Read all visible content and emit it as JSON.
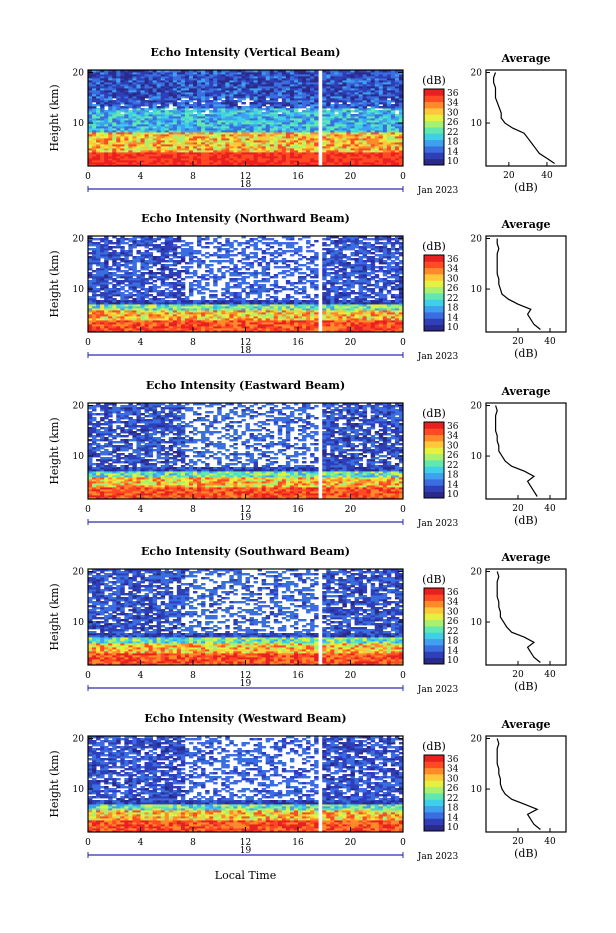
{
  "colors": {
    "scale": [
      "#2a2a8a",
      "#2e3fb8",
      "#3a6ee0",
      "#3fa0f0",
      "#3fd0e8",
      "#60e8b0",
      "#a8f070",
      "#e6f040",
      "#ffc83a",
      "#ff8a2a",
      "#ff4a24",
      "#e82020"
    ],
    "accent": "#2a2ab0",
    "gap": "#ffffff"
  },
  "xlabel": "Local Time",
  "units": "(dB)",
  "average_title": "Average",
  "colorbar_ticks": [
    "36",
    "34",
    "30",
    "26",
    "22",
    "18",
    "14",
    "10"
  ],
  "date_label": "Jan 2023",
  "chart_data": [
    {
      "type": "heatmap",
      "title": "Echo Intensity (Vertical Beam)",
      "ylabel": "Height (km)",
      "x_ticks": [
        "0",
        "4",
        "8",
        "12",
        "16",
        "20",
        "0"
      ],
      "y_ticks": [
        "20",
        "10"
      ],
      "day_label": "18",
      "xlim": [
        0,
        24
      ],
      "ylim": [
        1.5,
        20.5
      ],
      "clim": [
        10,
        38
      ],
      "average_profile": {
        "xlabel": "(dB)",
        "x_ticks": [
          "20",
          "40"
        ],
        "y_ticks": [
          "20",
          "10"
        ],
        "xlim": [
          8,
          50
        ],
        "height": [
          2,
          3,
          4,
          5,
          6,
          7,
          8,
          9,
          10,
          11,
          12,
          13,
          14,
          15,
          16,
          17,
          18,
          19,
          20
        ],
        "value": [
          44,
          40,
          36,
          34,
          32,
          30,
          28,
          22,
          18,
          16,
          16,
          15,
          14,
          13,
          13,
          13,
          12,
          12,
          13
        ]
      }
    },
    {
      "type": "heatmap",
      "title": "Echo Intensity (Northward Beam)",
      "ylabel": "Height (km)",
      "x_ticks": [
        "0",
        "4",
        "8",
        "12",
        "16",
        "20",
        "0"
      ],
      "y_ticks": [
        "20",
        "10"
      ],
      "day_label": "18",
      "xlim": [
        0,
        24
      ],
      "ylim": [
        1.5,
        20.5
      ],
      "clim": [
        10,
        38
      ],
      "average_profile": {
        "xlabel": "(dB)",
        "x_ticks": [
          "20",
          "40"
        ],
        "y_ticks": [
          "20",
          "10"
        ],
        "xlim": [
          0,
          50
        ],
        "height": [
          2,
          3,
          4,
          5,
          6,
          7,
          8,
          9,
          10,
          11,
          12,
          13,
          14,
          15,
          16,
          17,
          18,
          19,
          20
        ],
        "value": [
          34,
          30,
          28,
          26,
          28,
          20,
          14,
          10,
          9,
          8,
          8,
          7,
          7,
          7,
          7,
          7,
          8,
          7,
          7
        ]
      }
    },
    {
      "type": "heatmap",
      "title": "Echo Intensity (Eastward Beam)",
      "ylabel": "Height (km)",
      "x_ticks": [
        "0",
        "4",
        "8",
        "12",
        "16",
        "20",
        "0"
      ],
      "y_ticks": [
        "20",
        "10"
      ],
      "day_label": "19",
      "xlim": [
        0,
        24
      ],
      "ylim": [
        1.5,
        20.5
      ],
      "clim": [
        10,
        38
      ],
      "average_profile": {
        "xlabel": "(dB)",
        "x_ticks": [
          "20",
          "40"
        ],
        "y_ticks": [
          "20",
          "10"
        ],
        "xlim": [
          0,
          50
        ],
        "height": [
          2,
          3,
          4,
          5,
          6,
          7,
          8,
          9,
          10,
          11,
          12,
          13,
          14,
          15,
          16,
          17,
          18,
          19,
          20
        ],
        "value": [
          32,
          30,
          28,
          26,
          30,
          24,
          16,
          12,
          10,
          8,
          8,
          7,
          7,
          6,
          6,
          6,
          6,
          7,
          6
        ]
      }
    },
    {
      "type": "heatmap",
      "title": "Echo Intensity (Southward Beam)",
      "ylabel": "Height (km)",
      "x_ticks": [
        "0",
        "4",
        "8",
        "12",
        "16",
        "20",
        "0"
      ],
      "y_ticks": [
        "20",
        "10"
      ],
      "day_label": "19",
      "xlim": [
        0,
        24
      ],
      "ylim": [
        1.5,
        20.5
      ],
      "clim": [
        10,
        38
      ],
      "average_profile": {
        "xlabel": "(dB)",
        "x_ticks": [
          "20",
          "40"
        ],
        "y_ticks": [
          "20",
          "10"
        ],
        "xlim": [
          0,
          50
        ],
        "height": [
          2,
          3,
          4,
          5,
          6,
          7,
          8,
          9,
          10,
          11,
          12,
          13,
          14,
          15,
          16,
          17,
          18,
          19,
          20
        ],
        "value": [
          34,
          30,
          28,
          26,
          30,
          24,
          16,
          13,
          11,
          9,
          9,
          8,
          8,
          7,
          7,
          7,
          7,
          8,
          7
        ]
      }
    },
    {
      "type": "heatmap",
      "title": "Echo Intensity (Westward Beam)",
      "ylabel": "Height (km)",
      "x_ticks": [
        "0",
        "4",
        "8",
        "12",
        "16",
        "20",
        "0"
      ],
      "y_ticks": [
        "20",
        "10"
      ],
      "day_label": "19",
      "xlim": [
        0,
        24
      ],
      "ylim": [
        1.5,
        20.5
      ],
      "clim": [
        10,
        38
      ],
      "average_profile": {
        "xlabel": "(dB)",
        "x_ticks": [
          "20",
          "40"
        ],
        "y_ticks": [
          "20",
          "10"
        ],
        "xlim": [
          0,
          50
        ],
        "height": [
          2,
          3,
          4,
          5,
          6,
          7,
          8,
          9,
          10,
          11,
          12,
          13,
          14,
          15,
          16,
          17,
          18,
          19,
          20
        ],
        "value": [
          34,
          30,
          28,
          26,
          32,
          24,
          16,
          12,
          10,
          9,
          9,
          8,
          8,
          7,
          7,
          7,
          7,
          8,
          7
        ]
      }
    }
  ]
}
